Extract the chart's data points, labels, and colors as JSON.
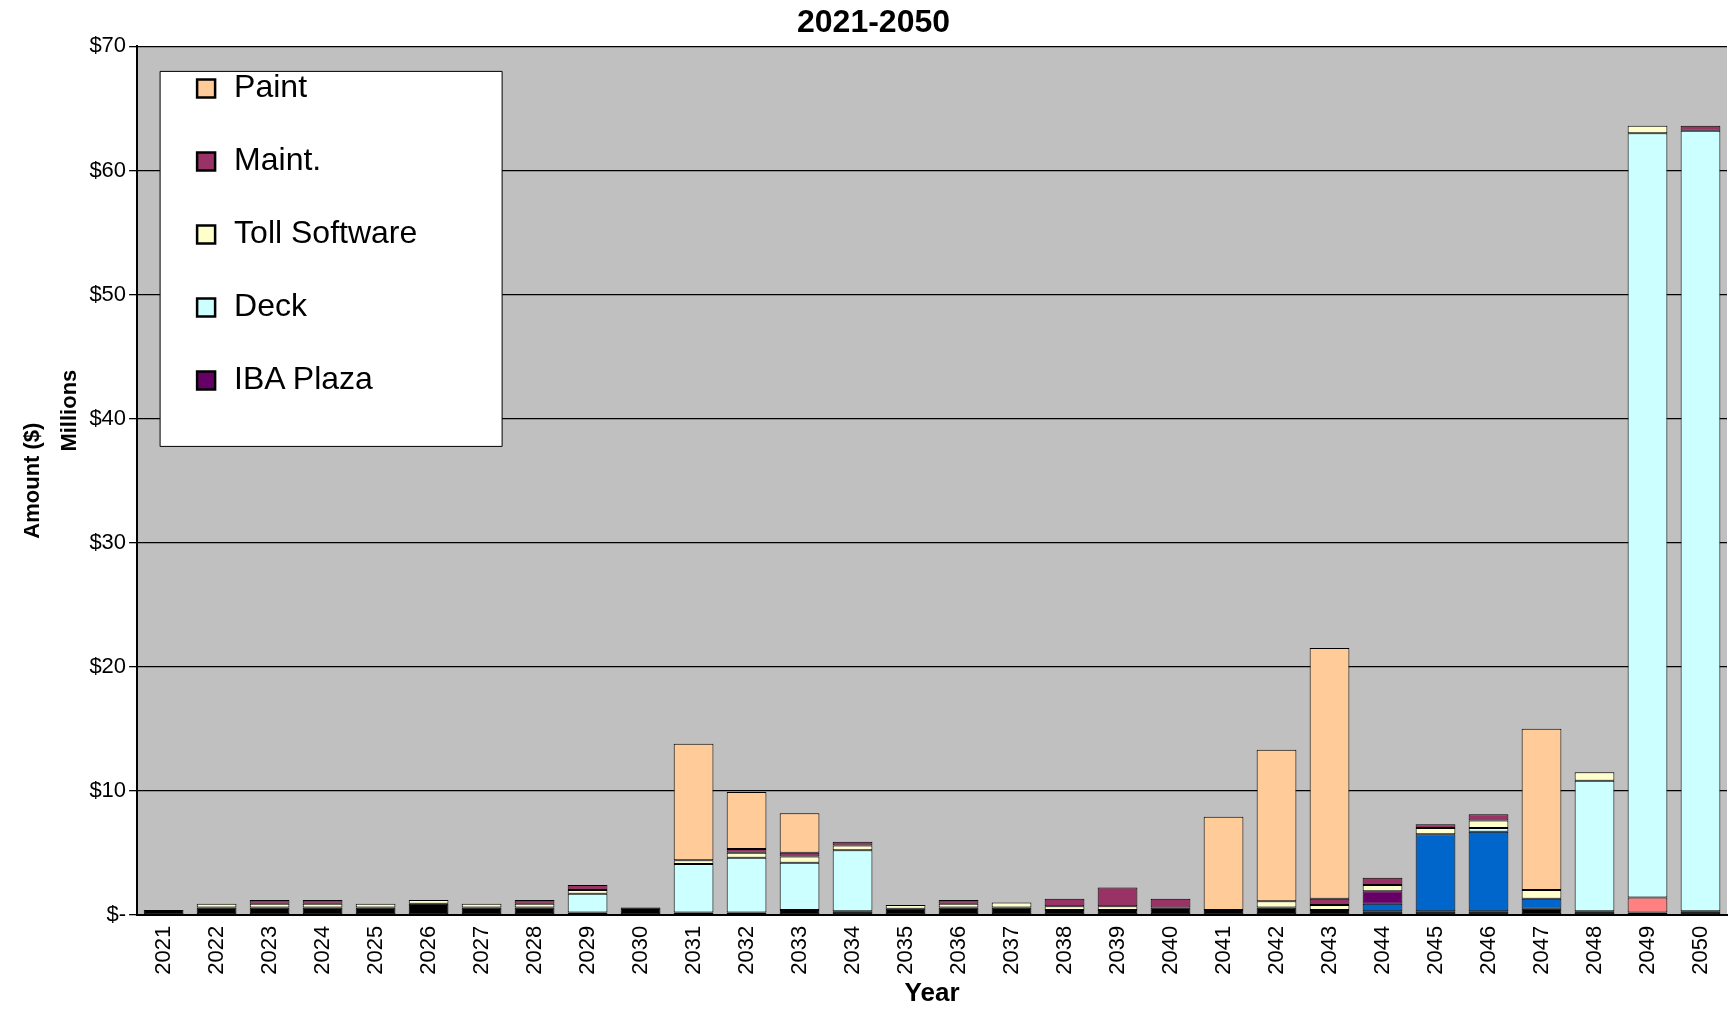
{
  "chart_data": {
    "type": "bar",
    "title": "2021-2050",
    "xlabel": "Year",
    "ylabel": "Amount ($)",
    "annotations": [
      "Millions"
    ],
    "categories": [
      "2021",
      "2022",
      "2023",
      "2024",
      "2025",
      "2026",
      "2027",
      "2028",
      "2029",
      "2030",
      "2031",
      "2032",
      "2033",
      "2034",
      "2035",
      "2036",
      "2037",
      "2038",
      "2039",
      "2040",
      "2041",
      "2042",
      "2043",
      "2044",
      "2045",
      "2046",
      "2047",
      "2048",
      "2049",
      "2050"
    ],
    "stacked": true,
    "grid": "y",
    "legend": "top left",
    "ylim": [
      0,
      70
    ],
    "yticks": [
      {
        "value": 0,
        "label": "$-"
      },
      {
        "value": 10,
        "label": "$10"
      },
      {
        "value": 20,
        "label": "$20"
      },
      {
        "value": 30,
        "label": "$30"
      },
      {
        "value": 40,
        "label": "$40"
      },
      {
        "value": 50,
        "label": "$50"
      },
      {
        "value": 60,
        "label": "$60"
      },
      {
        "value": 70,
        "label": "$70"
      }
    ],
    "series": [
      {
        "color": "#000000",
        "values": [
          0.4,
          0.6,
          0.6,
          0.6,
          0.6,
          0.9,
          0.6,
          0.6,
          0.2,
          0.6,
          0.2,
          0.2,
          0.4,
          0.3,
          0.5,
          0.6,
          0.6,
          0.4,
          0.4,
          0.6,
          0.4,
          0.6,
          0.4,
          0.3,
          0.3,
          0.3,
          0.5,
          0.3,
          0.2,
          0.3
        ]
      },
      {
        "color": "#0066cc",
        "values": [
          null,
          null,
          null,
          null,
          null,
          null,
          null,
          null,
          null,
          null,
          null,
          null,
          null,
          null,
          null,
          null,
          null,
          null,
          null,
          null,
          null,
          null,
          null,
          0.6,
          6.2,
          6.4,
          0.8,
          null,
          null,
          null
        ]
      },
      {
        "color": "#ff8080",
        "values": [
          null,
          null,
          null,
          null,
          null,
          null,
          null,
          null,
          null,
          null,
          null,
          null,
          null,
          null,
          null,
          null,
          null,
          null,
          null,
          null,
          null,
          null,
          null,
          null,
          null,
          null,
          null,
          null,
          1.2,
          null
        ]
      },
      {
        "name": "IBA Plaza",
        "color": "#660066",
        "values": [
          null,
          null,
          null,
          null,
          null,
          null,
          null,
          null,
          null,
          null,
          null,
          null,
          null,
          null,
          null,
          null,
          null,
          null,
          null,
          null,
          null,
          null,
          null,
          1.0,
          null,
          null,
          null,
          null,
          null,
          null
        ]
      },
      {
        "name": "Deck",
        "color": "#ccffff",
        "values": [
          null,
          null,
          null,
          null,
          null,
          null,
          null,
          null,
          1.5,
          null,
          3.9,
          4.4,
          3.8,
          4.9,
          null,
          null,
          null,
          null,
          null,
          null,
          null,
          null,
          null,
          null,
          null,
          0.3,
          null,
          10.5,
          61.6,
          62.9
        ]
      },
      {
        "name": "Toll Software",
        "color": "#ffffcc",
        "values": [
          null,
          0.3,
          0.3,
          0.3,
          0.3,
          0.3,
          0.3,
          0.3,
          0.3,
          null,
          0.3,
          0.4,
          0.5,
          0.4,
          0.3,
          0.3,
          0.4,
          0.3,
          0.3,
          null,
          null,
          0.5,
          0.4,
          0.5,
          0.5,
          0.6,
          0.7,
          0.7,
          0.6,
          null
        ]
      },
      {
        "name": "Maint.",
        "color": "#993366",
        "values": [
          null,
          null,
          0.3,
          0.3,
          null,
          null,
          null,
          0.3,
          0.4,
          null,
          null,
          0.3,
          0.3,
          0.3,
          null,
          0.3,
          null,
          0.6,
          1.5,
          0.7,
          null,
          null,
          0.5,
          0.6,
          0.3,
          0.5,
          null,
          null,
          null,
          0.4
        ]
      },
      {
        "name": "Paint",
        "color": "#ffcc99",
        "values": [
          null,
          null,
          null,
          null,
          null,
          null,
          null,
          null,
          null,
          null,
          9.4,
          4.6,
          3.2,
          null,
          null,
          null,
          null,
          null,
          null,
          null,
          7.5,
          12.2,
          20.2,
          null,
          null,
          null,
          13.0,
          null,
          null,
          null
        ]
      }
    ]
  }
}
